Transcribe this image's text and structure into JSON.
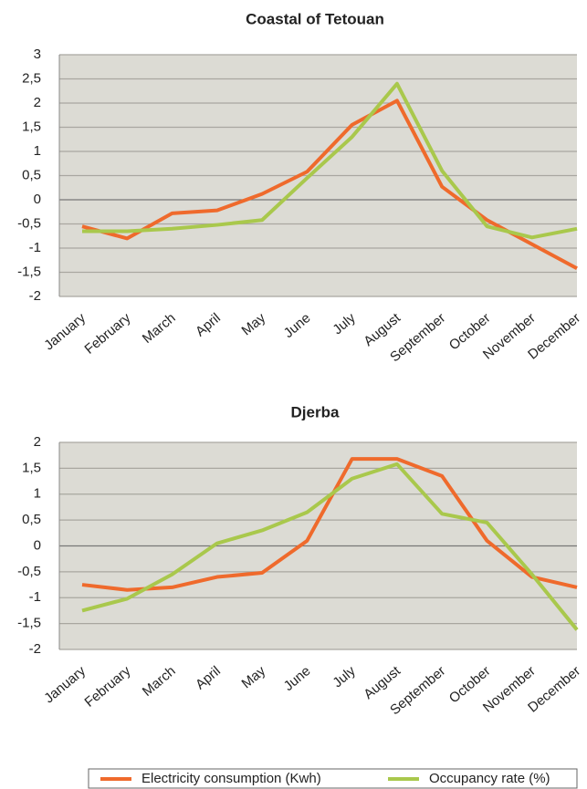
{
  "chart_data": [
    {
      "type": "line",
      "title": "Coastal of Tetouan",
      "categories": [
        "January",
        "February",
        "March",
        "April",
        "May",
        "June",
        "July",
        "August",
        "September",
        "October",
        "November",
        "December"
      ],
      "ylim": [
        -2,
        3
      ],
      "yticks": [
        3,
        {
          "value": 2.5,
          "label": "2,5"
        },
        2,
        {
          "value": 1.5,
          "label": "1,5"
        },
        1,
        {
          "value": 0.5,
          "label": "0,5"
        },
        0,
        {
          "value": -0.5,
          "label": "-0,5"
        },
        -1,
        {
          "value": -1.5,
          "label": "-1,5"
        },
        -2
      ],
      "grid": true,
      "series": [
        {
          "name": "Electricity consumption (Kwh)",
          "color": "#ef6a2c",
          "values": [
            -0.55,
            -0.8,
            -0.28,
            -0.22,
            0.12,
            0.58,
            1.55,
            2.05,
            0.27,
            -0.42,
            -0.92,
            -1.42
          ]
        },
        {
          "name": "Occupancy rate (%)",
          "color": "#a9c84c",
          "values": [
            -0.65,
            -0.65,
            -0.6,
            -0.52,
            -0.42,
            0.45,
            1.3,
            2.4,
            0.6,
            -0.55,
            -0.78,
            -0.6
          ]
        }
      ]
    },
    {
      "type": "line",
      "title": "Djerba",
      "categories": [
        "January",
        "February",
        "March",
        "April",
        "May",
        "June",
        "July",
        "August",
        "September",
        "October",
        "November",
        "December"
      ],
      "ylim": [
        -2,
        2
      ],
      "yticks": [
        2,
        {
          "value": 1.5,
          "label": "1,5"
        },
        1,
        {
          "value": 0.5,
          "label": "0,5"
        },
        0,
        {
          "value": -0.5,
          "label": "-0,5"
        },
        -1,
        {
          "value": -1.5,
          "label": "-1,5"
        },
        -2
      ],
      "grid": true,
      "series": [
        {
          "name": "Electricity consumption (Kwh)",
          "color": "#ef6a2c",
          "values": [
            -0.75,
            -0.85,
            -0.8,
            -0.6,
            -0.52,
            0.1,
            1.68,
            1.68,
            1.35,
            0.1,
            -0.6,
            -0.8
          ]
        },
        {
          "name": "Occupancy rate (%)",
          "color": "#a9c84c",
          "values": [
            -1.25,
            -1.02,
            -0.55,
            0.05,
            0.3,
            0.65,
            1.3,
            1.58,
            0.62,
            0.45,
            -0.55,
            -1.62
          ]
        }
      ]
    }
  ]
}
